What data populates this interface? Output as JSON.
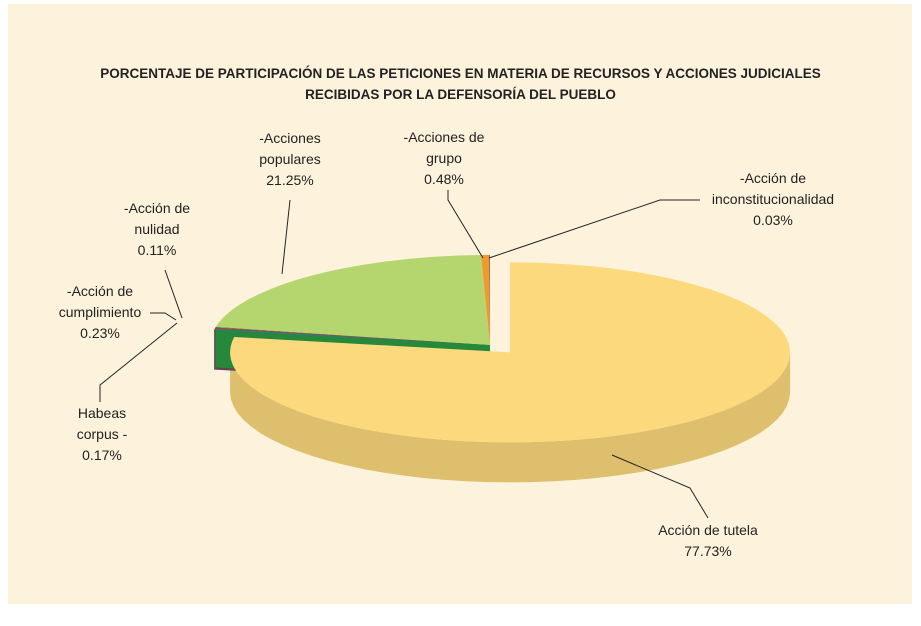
{
  "chart_data": {
    "type": "pie",
    "title": "PORCENTAJE DE PARTICIPACIÓN DE LAS PETICIONES EN MATERIA DE RECURSOS Y ACCIONES JUDICIALES RECIBIDAS POR LA DEFENSORÍA DEL PUEBLO",
    "categories": [
      "Acción de tutela",
      "Habeas corpus -",
      "-Acción de cumplimiento",
      "-Acción de nulidad",
      "-Acciones populares",
      "-Acciones de grupo",
      "-Acción de inconstitucionalidad"
    ],
    "values": [
      77.73,
      0.17,
      0.23,
      0.11,
      21.25,
      0.48,
      0.03
    ],
    "value_labels": [
      "77.73%",
      "0.17%",
      "0.23%",
      "0.11%",
      "21.25%",
      "0.48%",
      "0.03%"
    ],
    "colors": [
      "#fcd97c",
      "#1f78c1",
      "#c0392b",
      "#2eaa4a",
      "#b5d56e",
      "#f3992b",
      "#1f4e8c"
    ]
  }
}
